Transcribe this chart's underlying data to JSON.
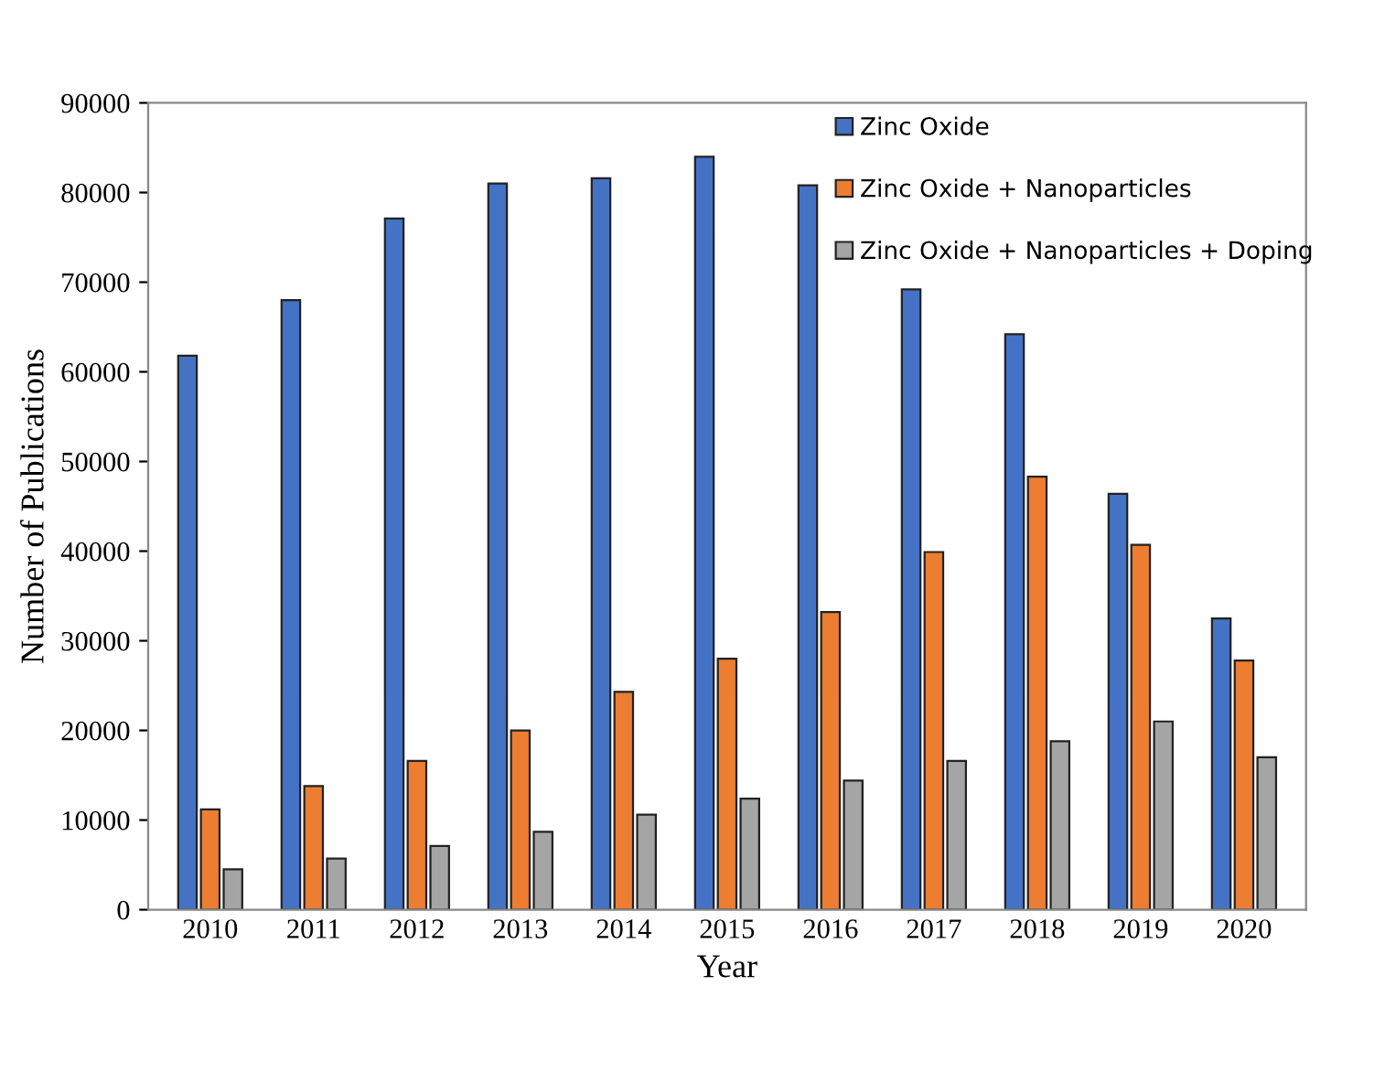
{
  "chart_data": {
    "type": "bar",
    "xlabel": "Year",
    "ylabel": "Number of Publications",
    "categories": [
      "2010",
      "2011",
      "2012",
      "2013",
      "2014",
      "2015",
      "2016",
      "2017",
      "2018",
      "2019",
      "2020"
    ],
    "series": [
      {
        "name": "Zinc Oxide",
        "color": "#4472c4",
        "values": [
          61800,
          68000,
          77100,
          81000,
          81600,
          84000,
          80800,
          69200,
          64200,
          46400,
          32500
        ]
      },
      {
        "name": "Zinc Oxide + Nanoparticles",
        "color": "#ed7d31",
        "values": [
          11200,
          13800,
          16600,
          20000,
          24300,
          28000,
          33200,
          39900,
          48300,
          40700,
          27800
        ]
      },
      {
        "name": "Zinc Oxide + Nanoparticles + Doping",
        "color": "#a5a5a5",
        "values": [
          4500,
          5700,
          7100,
          8700,
          10600,
          12400,
          14400,
          16600,
          18800,
          21000,
          17000
        ]
      }
    ],
    "ylim": [
      0,
      90000
    ],
    "yticks": [
      0,
      10000,
      20000,
      30000,
      40000,
      50000,
      60000,
      70000,
      80000,
      90000
    ],
    "grid": false,
    "legend": "top right"
  }
}
